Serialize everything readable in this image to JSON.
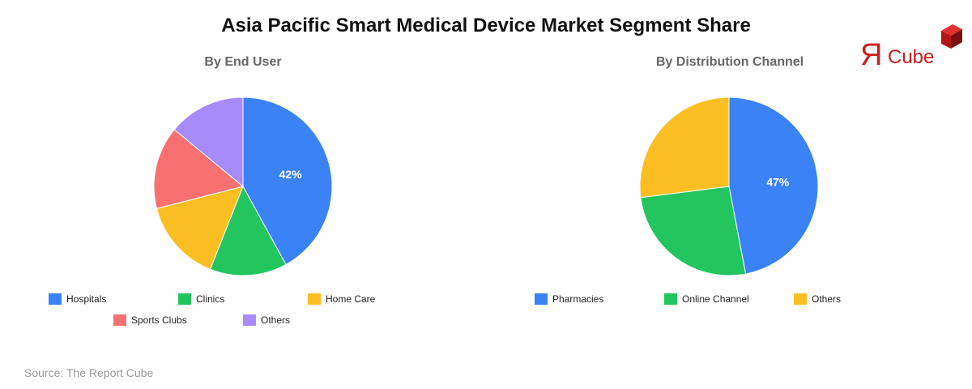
{
  "title": "Asia Pacific Smart Medical Device Market Segment Share",
  "source": "Source: The Report Cube",
  "logo_text": "ЯCube",
  "chart_data": [
    {
      "type": "pie",
      "title": "By End User",
      "categories": [
        "Hospitals",
        "Clinics",
        "Home Care",
        "Sports Clubs",
        "Others"
      ],
      "values": [
        42,
        14,
        15,
        15,
        14
      ],
      "colors": [
        "#3b82f6",
        "#22c55e",
        "#fbbf24",
        "#f87171",
        "#a78bfa"
      ],
      "data_labels": [
        "42%",
        "",
        "",
        "",
        ""
      ],
      "legend": "bottom"
    },
    {
      "type": "pie",
      "title": "By Distribution Channel",
      "categories": [
        "Pharmacies",
        "Online Channel",
        "Others"
      ],
      "values": [
        47,
        26,
        27
      ],
      "colors": [
        "#3b82f6",
        "#22c55e",
        "#fbbf24"
      ],
      "data_labels": [
        "47%",
        "",
        ""
      ],
      "legend": "bottom"
    }
  ]
}
